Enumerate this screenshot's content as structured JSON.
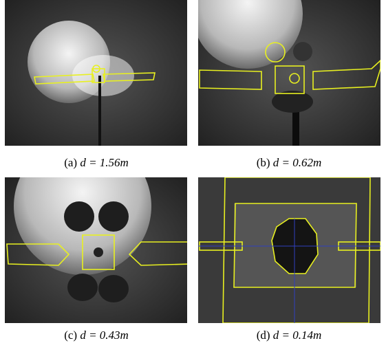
{
  "panels": [
    {
      "label": "(a)",
      "formula": "d = 1.56m"
    },
    {
      "label": "(b)",
      "formula": "d = 0.62m"
    },
    {
      "label": "(c)",
      "formula": "d = 0.43m"
    },
    {
      "label": "(d)",
      "formula": "d = 0.14m"
    }
  ]
}
